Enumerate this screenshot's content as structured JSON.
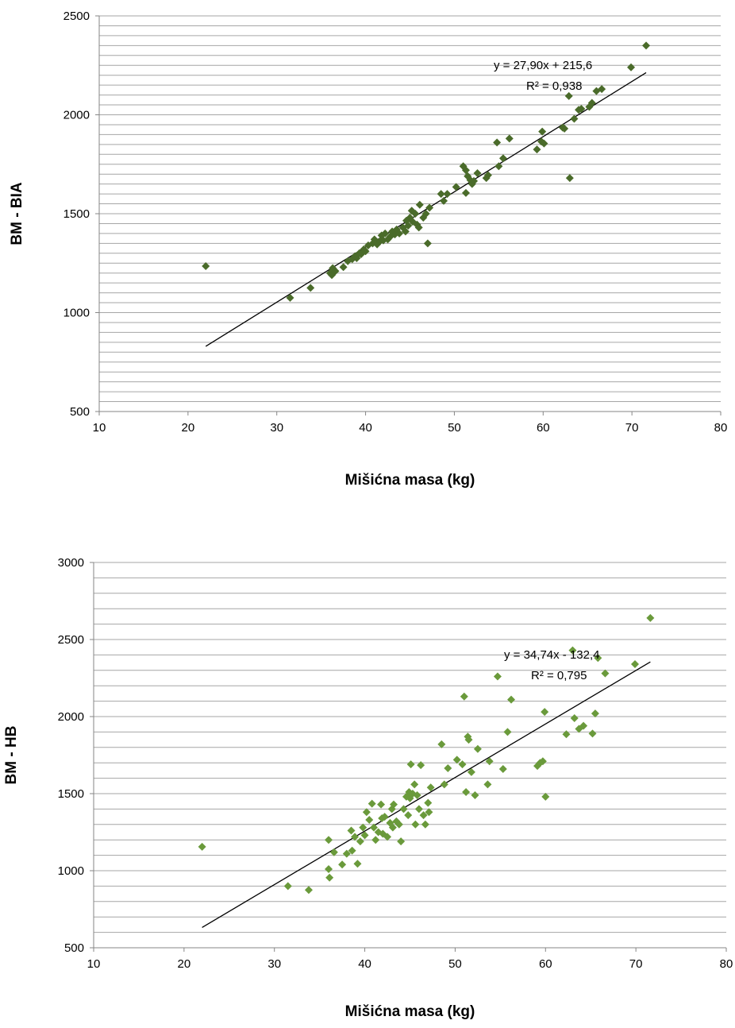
{
  "chart_data": [
    {
      "type": "scatter",
      "xlabel": "Mišićna masa (kg)",
      "ylabel": "BM - BIA",
      "xlim": [
        10,
        80
      ],
      "ylim": [
        500,
        2500
      ],
      "x_ticks": [
        "10",
        "20",
        "30",
        "40",
        "50",
        "60",
        "70",
        "80"
      ],
      "y_ticks": [
        "500",
        "1000",
        "1500",
        "2000",
        "2500"
      ],
      "grid": "horizontal major and minor",
      "marker": "diamond",
      "colors": {
        "points": "#4a6b2a",
        "trendline": "#000000",
        "gridline": "#a6a6a6"
      },
      "trendline": {
        "slope": 27.9,
        "intercept": 215.6,
        "x_range": [
          22,
          71.6
        ],
        "equation": "y = 27,90x + 215,6",
        "r2": "R² = 0,938"
      },
      "series": [
        {
          "points": [
            [
              22,
              1235
            ],
            [
              31.5,
              1075
            ],
            [
              33.8,
              1125
            ],
            [
              36,
              1200
            ],
            [
              36.2,
              1190
            ],
            [
              36.3,
              1225
            ],
            [
              36.6,
              1210
            ],
            [
              37.5,
              1230
            ],
            [
              38,
              1260
            ],
            [
              38.5,
              1270
            ],
            [
              38.8,
              1285
            ],
            [
              39,
              1275
            ],
            [
              39.3,
              1300
            ],
            [
              39.5,
              1295
            ],
            [
              39.8,
              1320
            ],
            [
              40,
              1310
            ],
            [
              40.3,
              1340
            ],
            [
              40.8,
              1350
            ],
            [
              41,
              1370
            ],
            [
              41.3,
              1345
            ],
            [
              41.6,
              1360
            ],
            [
              41.8,
              1390
            ],
            [
              42,
              1365
            ],
            [
              42.2,
              1400
            ],
            [
              42.5,
              1370
            ],
            [
              42.8,
              1385
            ],
            [
              43,
              1410
            ],
            [
              43.3,
              1395
            ],
            [
              43.5,
              1420
            ],
            [
              43.8,
              1400
            ],
            [
              44.2,
              1430
            ],
            [
              44.5,
              1410
            ],
            [
              44.6,
              1465
            ],
            [
              44.8,
              1440
            ],
            [
              45,
              1480
            ],
            [
              45.2,
              1515
            ],
            [
              45.3,
              1460
            ],
            [
              45.6,
              1500
            ],
            [
              45.8,
              1445
            ],
            [
              46,
              1430
            ],
            [
              46.1,
              1545
            ],
            [
              46.5,
              1480
            ],
            [
              46.8,
              1500
            ],
            [
              47,
              1350
            ],
            [
              47.2,
              1530
            ],
            [
              48.5,
              1600
            ],
            [
              48.8,
              1565
            ],
            [
              49.2,
              1600
            ],
            [
              50.2,
              1635
            ],
            [
              51,
              1740
            ],
            [
              51.3,
              1720
            ],
            [
              51.3,
              1605
            ],
            [
              51.5,
              1690
            ],
            [
              51.8,
              1670
            ],
            [
              52,
              1650
            ],
            [
              52.2,
              1665
            ],
            [
              52.6,
              1705
            ],
            [
              53.6,
              1680
            ],
            [
              53.8,
              1695
            ],
            [
              54.8,
              1860
            ],
            [
              55,
              1740
            ],
            [
              55.5,
              1780
            ],
            [
              56.2,
              1880
            ],
            [
              59.3,
              1825
            ],
            [
              59.8,
              1865
            ],
            [
              59.9,
              1915
            ],
            [
              60.1,
              1855
            ],
            [
              62.2,
              1935
            ],
            [
              62.4,
              1930
            ],
            [
              62.9,
              2095
            ],
            [
              63,
              1680
            ],
            [
              63.5,
              1980
            ],
            [
              64,
              2025
            ],
            [
              64.3,
              2030
            ],
            [
              65.2,
              2040
            ],
            [
              65.5,
              2060
            ],
            [
              66,
              2120
            ],
            [
              66.6,
              2130
            ],
            [
              69.9,
              2240
            ],
            [
              71.6,
              2350
            ]
          ]
        }
      ]
    },
    {
      "type": "scatter",
      "xlabel": "Mišićna masa (kg)",
      "ylabel": "BM - HB",
      "xlim": [
        10,
        80
      ],
      "ylim": [
        500,
        3000
      ],
      "x_ticks": [
        "10",
        "20",
        "30",
        "40",
        "50",
        "60",
        "70",
        "80"
      ],
      "y_ticks": [
        "500",
        "1000",
        "1500",
        "2000",
        "2500",
        "3000"
      ],
      "grid": "horizontal major and minor",
      "marker": "diamond",
      "colors": {
        "points": "#6a9a3b",
        "trendline": "#000000",
        "gridline": "#a6a6a6"
      },
      "trendline": {
        "slope": 34.74,
        "intercept": -132.4,
        "x_range": [
          22,
          71.6
        ],
        "equation": "y = 34,74x - 132,4",
        "r2": "R² = 0,795"
      },
      "series": [
        {
          "points": [
            [
              22,
              1155
            ],
            [
              31.5,
              900
            ],
            [
              33.8,
              875
            ],
            [
              36,
              1200
            ],
            [
              36,
              1010
            ],
            [
              36.1,
              955
            ],
            [
              36.6,
              1120
            ],
            [
              37.5,
              1040
            ],
            [
              38,
              1110
            ],
            [
              38.5,
              1260
            ],
            [
              38.6,
              1130
            ],
            [
              38.9,
              1220
            ],
            [
              39.2,
              1045
            ],
            [
              39.5,
              1190
            ],
            [
              39.8,
              1280
            ],
            [
              40,
              1230
            ],
            [
              40.2,
              1380
            ],
            [
              40.5,
              1330
            ],
            [
              40.8,
              1435
            ],
            [
              41,
              1280
            ],
            [
              41.2,
              1200
            ],
            [
              41.5,
              1250
            ],
            [
              41.8,
              1430
            ],
            [
              41.9,
              1340
            ],
            [
              42,
              1240
            ],
            [
              42.2,
              1350
            ],
            [
              42.5,
              1220
            ],
            [
              42.8,
              1310
            ],
            [
              43,
              1400
            ],
            [
              43.1,
              1280
            ],
            [
              43.2,
              1430
            ],
            [
              43.5,
              1320
            ],
            [
              43.8,
              1300
            ],
            [
              44,
              1190
            ],
            [
              44.3,
              1400
            ],
            [
              44.6,
              1480
            ],
            [
              44.8,
              1360
            ],
            [
              44.9,
              1510
            ],
            [
              45,
              1470
            ],
            [
              45.1,
              1690
            ],
            [
              45.3,
              1500
            ],
            [
              45.5,
              1560
            ],
            [
              45.6,
              1300
            ],
            [
              45.8,
              1490
            ],
            [
              46,
              1400
            ],
            [
              46.2,
              1685
            ],
            [
              46.5,
              1360
            ],
            [
              46.7,
              1300
            ],
            [
              47,
              1440
            ],
            [
              47.1,
              1380
            ],
            [
              47.3,
              1540
            ],
            [
              48.5,
              1820
            ],
            [
              48.8,
              1560
            ],
            [
              49.2,
              1665
            ],
            [
              50.2,
              1720
            ],
            [
              50.8,
              1690
            ],
            [
              51,
              2130
            ],
            [
              51.2,
              1510
            ],
            [
              51.4,
              1870
            ],
            [
              51.5,
              1850
            ],
            [
              51.8,
              1640
            ],
            [
              52.2,
              1490
            ],
            [
              52.5,
              1790
            ],
            [
              53.8,
              1710
            ],
            [
              53.6,
              1560
            ],
            [
              54.7,
              2260
            ],
            [
              55.3,
              1660
            ],
            [
              55.8,
              1900
            ],
            [
              56.2,
              2110
            ],
            [
              59.1,
              1680
            ],
            [
              59.4,
              1700
            ],
            [
              59.7,
              1710
            ],
            [
              59.9,
              2030
            ],
            [
              60,
              1480
            ],
            [
              62.3,
              1885
            ],
            [
              63,
              2430
            ],
            [
              63.2,
              1990
            ],
            [
              63.7,
              1920
            ],
            [
              64.2,
              1940
            ],
            [
              65.2,
              1890
            ],
            [
              65.5,
              2020
            ],
            [
              65.8,
              2380
            ],
            [
              66.6,
              2280
            ],
            [
              69.9,
              2340
            ],
            [
              71.6,
              2640
            ]
          ]
        }
      ]
    }
  ]
}
